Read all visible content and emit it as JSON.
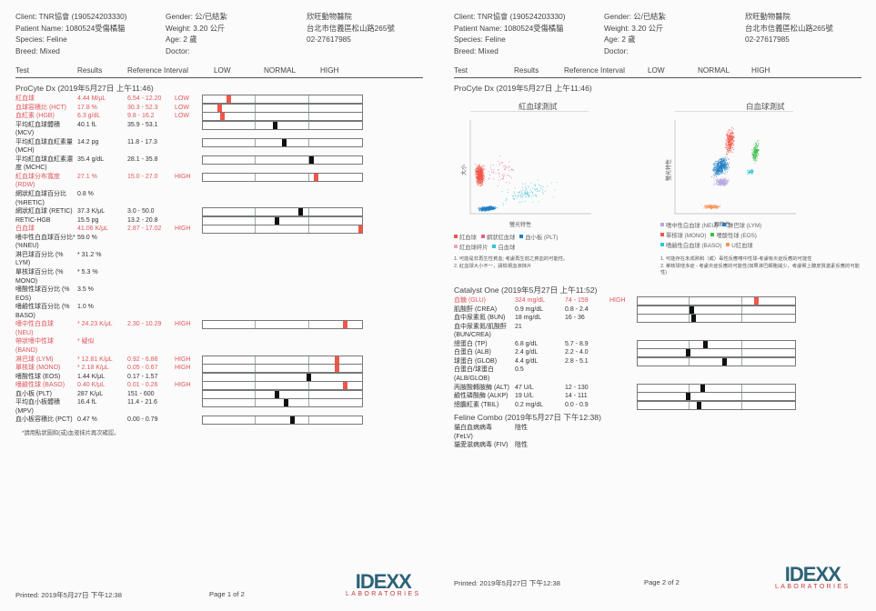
{
  "header": {
    "client": "Client: TNR協會 (190524203330)",
    "patient": "Patient Name: 1080524受傷橘貓",
    "species": "Species: Feline",
    "breed": "Breed: Mixed",
    "gender": "Gender: 公/已結紮",
    "weight": "Weight: 3.20 公斤",
    "age": "Age: 2 歲",
    "doctor": "Doctor:",
    "clinic_name": "欣旺動物醫院",
    "clinic_address": "台北市信義區松山路265號",
    "clinic_phone": "02-27617985"
  },
  "columns": {
    "test": "Test",
    "results": "Results",
    "reference": "Reference Interval",
    "low": "LOW",
    "normal": "NORMAL",
    "high": "HIGH"
  },
  "colors": {
    "abnormal": "#e0565b",
    "marker_high_low": "#f0564a",
    "marker_normal": "#111111",
    "idexx_blue": "#2d6277",
    "idexx_red": "#c9383a"
  },
  "procyte": {
    "title": "ProCyte Dx (2019年5月27日 上午11:46)",
    "rows": [
      {
        "name": "紅血球",
        "result": "4.44 M/μL",
        "ref": "6.54 - 12.20",
        "flag": "LOW",
        "abn": true,
        "marker": 0.16,
        "lines": 1
      },
      {
        "name": "血球容積比 (HCT)",
        "result": "17.8 %",
        "ref": "30.3 - 52.3",
        "flag": "LOW",
        "abn": true,
        "marker": 0.1,
        "lines": 1
      },
      {
        "name": "血紅素 (HGB)",
        "result": "6.3 g/dL",
        "ref": "9.8 - 16.2",
        "flag": "LOW",
        "abn": true,
        "marker": 0.12,
        "lines": 1
      },
      {
        "name": "平均紅血球體積",
        "name2": "(MCV)",
        "result": "40.1 fL",
        "ref": "35.9 - 53.1",
        "flag": "",
        "abn": false,
        "marker": 0.45,
        "lines": 2
      },
      {
        "name": "平均紅血球血紅素量",
        "name2": "(MCH)",
        "result": "14.2 pg",
        "ref": "11.8 - 17.3",
        "flag": "",
        "abn": false,
        "marker": 0.51,
        "lines": 2
      },
      {
        "name": "平均紅血球血紅素濃",
        "name2": "度 (MCHC)",
        "result": "35.4 g/dL",
        "ref": "28.1 - 35.8",
        "flag": "",
        "abn": false,
        "marker": 0.68,
        "lines": 2
      },
      {
        "name": "紅血球分布寬度",
        "name2": "(RDW)",
        "result": "27.1 %",
        "ref": "15.0 - 27.0",
        "flag": "HIGH",
        "abn": true,
        "marker": 0.71,
        "lines": 2
      },
      {
        "name": "網狀紅血球百分比",
        "name2": "(%RETIC)",
        "result": "0.8 %",
        "ref": "",
        "flag": "",
        "abn": false,
        "lines": 2
      },
      {
        "name": "網狀紅血球 (RETIC)",
        "result": "37.3 K/μL",
        "ref": "3.0 - 50.0",
        "flag": "",
        "abn": false,
        "marker": 0.61,
        "lines": 1
      },
      {
        "name": "RETIC-HGB",
        "result": "15.5 pg",
        "ref": "13.2 - 20.8",
        "flag": "",
        "abn": false,
        "marker": 0.46,
        "lines": 1
      },
      {
        "name": "白血球",
        "result": "41.06 K/μL",
        "ref": "2.87 - 17.02",
        "flag": "HIGH",
        "abn": true,
        "marker": 0.99,
        "lines": 1
      },
      {
        "name": "嗜中性白血球百分比*",
        "name2": "(%NEU)",
        "result": "59.0 %",
        "ref": "",
        "flag": "",
        "abn": false,
        "lines": 2
      },
      {
        "name": "淋巴球百分比 (%",
        "name2": "LYM)",
        "result": "* 31.2 %",
        "ref": "",
        "flag": "",
        "abn": false,
        "lines": 2
      },
      {
        "name": "單核球百分比 (%",
        "name2": "MONO)",
        "result": "* 5.3 %",
        "ref": "",
        "flag": "",
        "abn": false,
        "lines": 2
      },
      {
        "name": "嗜酸性球百分比 (%",
        "name2": "EOS)",
        "result": "3.5 %",
        "ref": "",
        "flag": "",
        "abn": false,
        "lines": 2
      },
      {
        "name": "嗜鹼性球百分比 (%",
        "name2": "BASO)",
        "result": "1.0 %",
        "ref": "",
        "flag": "",
        "abn": false,
        "lines": 2
      },
      {
        "name": "嗜中性白血球",
        "name2": "(NEU)",
        "result": "* 24.23 K/μL",
        "ref": "2.30 - 10.29",
        "flag": "HIGH",
        "abn": true,
        "marker": 0.89,
        "lines": 2
      },
      {
        "name": "  帶狀嗜中性球",
        "name2": "(BAND)",
        "result": "* 疑似",
        "ref": "",
        "flag": "",
        "abn": true,
        "lines": 2
      },
      {
        "name": "淋巴球 (LYM)",
        "result": "* 12.81 K/μL",
        "ref": "0.92 - 6.88",
        "flag": "HIGH",
        "abn": true,
        "marker": 0.84,
        "lines": 1
      },
      {
        "name": "單核球 (MONO)",
        "result": "* 2.18 K/μL",
        "ref": "0.05 - 0.67",
        "flag": "HIGH",
        "abn": true,
        "marker": 0.84,
        "lines": 1
      },
      {
        "name": "嗜酸性球 (EOS)",
        "result": "1.44 K/μL",
        "ref": "0.17 - 1.57",
        "flag": "",
        "abn": false,
        "marker": 0.66,
        "lines": 1
      },
      {
        "name": "嗜鹼性球 (BASO)",
        "result": "0.40 K/μL",
        "ref": "0.01 - 0.26",
        "flag": "HIGH",
        "abn": true,
        "marker": 0.89,
        "lines": 1
      },
      {
        "name": "血小板 (PLT)",
        "result": "287 K/μL",
        "ref": "151 - 600",
        "flag": "",
        "abn": false,
        "marker": 0.46,
        "lines": 1
      },
      {
        "name": "平均血小板體積",
        "name2": "(MPV)",
        "result": "16.4 fL",
        "ref": "11.4 - 21.6",
        "flag": "",
        "abn": false,
        "marker": 0.52,
        "lines": 2
      },
      {
        "name": "血小板容積比 (PCT)",
        "result": "0.47 %",
        "ref": "0.00 - 0.79",
        "flag": "",
        "abn": false,
        "marker": 0.56,
        "lines": 1
      }
    ],
    "footnote": "*請用點狀圖和(或)血液抹片再次確認。"
  },
  "scatter": {
    "rbc": {
      "title": "紅血球測試",
      "ylabel": "大小",
      "xlabel": "螢光特性",
      "legend": [
        {
          "label": "紅血球",
          "color": "#f0564a"
        },
        {
          "label": "網狀紅血球",
          "color": "#e8608a"
        },
        {
          "label": "血小板 (PLT)",
          "color": "#1f7fc4"
        },
        {
          "label": "紅血球碎片",
          "color": "#f2a3c0"
        },
        {
          "label": "白血球",
          "color": "#35c3d4"
        }
      ],
      "notes": [
        "1. 可能是非再生性貧血; 考慮再生前之貧血的可能性。",
        "2. 紅血球大小不一，請檢視血液抹片"
      ]
    },
    "wbc": {
      "title": "白血球測試",
      "ylabel": "螢光特性",
      "xlabel": "顆粒性",
      "legend": [
        {
          "label": "嗜中性白血球 (NEU)",
          "color": "#b7a6de"
        },
        {
          "label": "淋巴球 (LYM)",
          "color": "#1f7fc4"
        },
        {
          "label": "單核球 (MONO)",
          "color": "#f0564a"
        },
        {
          "label": "嗜酸性球 (EOS)",
          "color": "#3cbf4c"
        },
        {
          "label": "嗜鹼性白血球 (BASO)",
          "color": "#35c3d4"
        },
        {
          "label": "U紅血球",
          "color": "#f5965a"
        }
      ],
      "notes": [
        "1. 可能存在未成熟和（或）毒性反應嗜中性球-考慮有炎症反應的可能性",
        "2. 單核球增多症 - 考慮炎症反應的可能性(如果淋巴細胞減少，考慮腎上腺皮質激素反應的可能性)"
      ]
    }
  },
  "catalyst": {
    "title": "Catalyst One (2019年5月27日 上午11:52)",
    "rows": [
      {
        "name": "血糖 (GLU)",
        "result": "324 mg/dL",
        "ref": "74 - 159",
        "flag": "HIGH",
        "abn": true,
        "marker": 0.75,
        "lines": 1
      },
      {
        "name": "肌酸酐 (CREA)",
        "result": "0.9 mg/dL",
        "ref": "0.8 - 2.4",
        "flag": "",
        "abn": false,
        "marker": 0.34,
        "lines": 1
      },
      {
        "name": "血中尿素氮 (BUN)",
        "result": "18 mg/dL",
        "ref": "16 - 36",
        "flag": "",
        "abn": false,
        "marker": 0.35,
        "lines": 1
      },
      {
        "name": "血中尿素氮/肌酸酐",
        "name2": "(BUN/CREA)",
        "result": "21",
        "ref": "",
        "flag": "",
        "abn": false,
        "lines": 2
      },
      {
        "name": "總蛋白 (TP)",
        "result": "6.8 g/dL",
        "ref": "5.7 - 8.9",
        "flag": "",
        "abn": false,
        "marker": 0.43,
        "lines": 1
      },
      {
        "name": "白蛋白 (ALB)",
        "result": "2.4 g/dL",
        "ref": "2.2 - 4.0",
        "flag": "",
        "abn": false,
        "marker": 0.32,
        "lines": 1
      },
      {
        "name": "球蛋白 (GLOB)",
        "result": "4.4 g/dL",
        "ref": "2.8 - 5.1",
        "flag": "",
        "abn": false,
        "marker": 0.55,
        "lines": 1
      },
      {
        "name": "白蛋白/球蛋白",
        "name2": "(ALB/GLOB)",
        "result": "0.5",
        "ref": "",
        "flag": "",
        "abn": false,
        "lines": 2
      },
      {
        "name": "丙胺酸轉胺酶 (ALT)",
        "result": "47 U/L",
        "ref": "12 - 130",
        "flag": "",
        "abn": false,
        "marker": 0.41,
        "lines": 1
      },
      {
        "name": "鹼性磷酸酶 (ALKP)",
        "result": "19 U/L",
        "ref": "14 - 111",
        "flag": "",
        "abn": false,
        "marker": 0.32,
        "lines": 1
      },
      {
        "name": "總膽紅素 (TBIL)",
        "result": "0.2 mg/dL",
        "ref": "0.0 - 0.9",
        "flag": "",
        "abn": false,
        "marker": 0.39,
        "lines": 1
      }
    ]
  },
  "combo": {
    "title": "Feline Combo (2019年5月27日 下午12:38)",
    "rows": [
      {
        "name": "貓白血病病毒",
        "name2": "(FeLV)",
        "result": "陰性",
        "lines": 2
      },
      {
        "name": "貓愛滋病病毒 (FIV)",
        "result": "陰性",
        "lines": 1
      }
    ]
  },
  "footer": {
    "printed": "Printed: 2019年5月27日 下午12:38",
    "page1": "Page 1 of 2",
    "page2": "Page 2 of 2",
    "logo_text": "IDEXX",
    "logo_sub": "LABORATORIES"
  }
}
